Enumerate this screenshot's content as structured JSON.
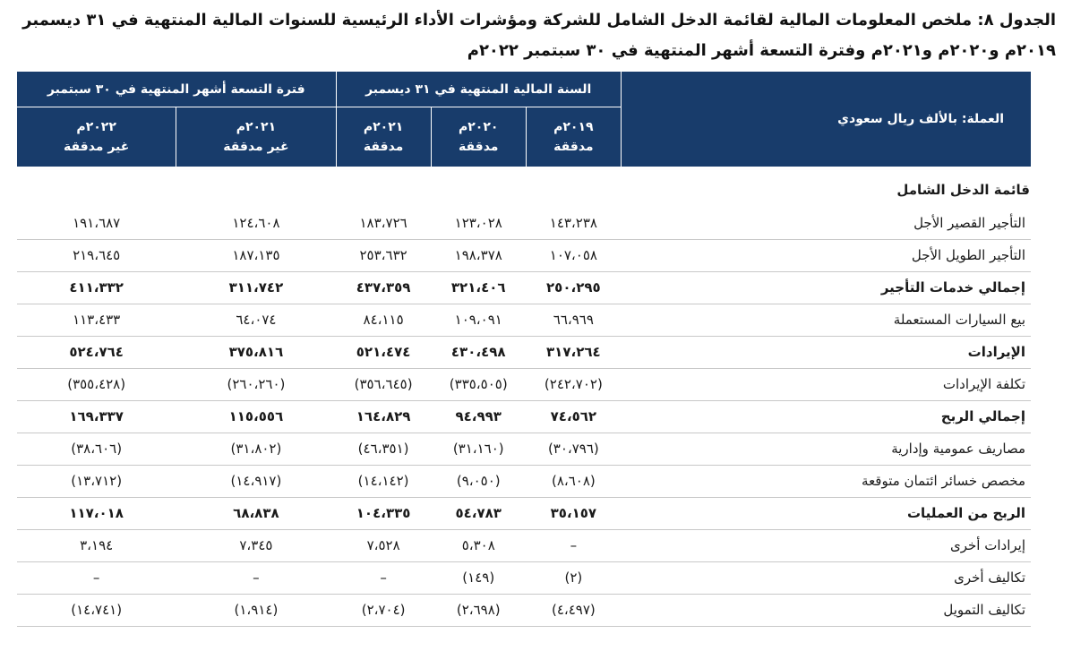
{
  "title": "الجدول ٨: ملخص المعلومات المالية لقائمة الدخل الشامل للشركة ومؤشرات الأداء الرئيسية للسنوات المالية المنتهية في ٣١ ديسمبر ٢٠١٩م و٢٠٢٠م و٢٠٢١م وفترة التسعة أشهر المنتهية في ٣٠ سبتمبر ٢٠٢٢م",
  "header": {
    "currency": "العملة: بالألف ريال سعودي",
    "group_fy": "السنة المالية المنتهية في ٣١ ديسمبر",
    "group_9m": "فترة التسعة أشهر المنتهية في ٣٠ سبتمبر",
    "columns": [
      {
        "year": "٢٠١٩م",
        "status": "مدققة"
      },
      {
        "year": "٢٠٢٠م",
        "status": "مدققة"
      },
      {
        "year": "٢٠٢١م",
        "status": "مدققة"
      },
      {
        "year": "٢٠٢١م",
        "status": "غير مدققة"
      },
      {
        "year": "٢٠٢٢م",
        "status": "غير مدققة"
      }
    ]
  },
  "section_title": "قائمة الدخل الشامل",
  "rows": [
    {
      "label": "التأجير القصير الأجل",
      "bold": false,
      "values": [
        "١٤٣،٢٣٨",
        "١٢٣،٠٢٨",
        "١٨٣،٧٢٦",
        "١٢٤،٦٠٨",
        "١٩١،٦٨٧"
      ]
    },
    {
      "label": "التأجير الطويل الأجل",
      "bold": false,
      "values": [
        "١٠٧،٠٥٨",
        "١٩٨،٣٧٨",
        "٢٥٣،٦٣٢",
        "١٨٧،١٣٥",
        "٢١٩،٦٤٥"
      ]
    },
    {
      "label": "إجمالي خدمات التأجير",
      "bold": true,
      "values": [
        "٢٥٠،٢٩٥",
        "٣٢١،٤٠٦",
        "٤٣٧،٣٥٩",
        "٣١١،٧٤٢",
        "٤١١،٣٣٢"
      ]
    },
    {
      "label": "بيع السيارات المستعملة",
      "bold": false,
      "values": [
        "٦٦،٩٦٩",
        "١٠٩،٠٩١",
        "٨٤،١١٥",
        "٦٤،٠٧٤",
        "١١٣،٤٣٣"
      ]
    },
    {
      "label": "الإيرادات",
      "bold": true,
      "values": [
        "٣١٧،٢٦٤",
        "٤٣٠،٤٩٨",
        "٥٢١،٤٧٤",
        "٣٧٥،٨١٦",
        "٥٢٤،٧٦٤"
      ]
    },
    {
      "label": "تكلفة الإيرادات",
      "bold": false,
      "values": [
        "(٢٤٢،٧٠٢)",
        "(٣٣٥،٥٠٥)",
        "(٣٥٦،٦٤٥)",
        "(٢٦٠،٢٦٠)",
        "(٣٥٥،٤٢٨)"
      ]
    },
    {
      "label": "إجمالي الربح",
      "bold": true,
      "values": [
        "٧٤،٥٦٢",
        "٩٤،٩٩٣",
        "١٦٤،٨٢٩",
        "١١٥،٥٥٦",
        "١٦٩،٣٣٧"
      ]
    },
    {
      "label": "مصاريف عمومية وإدارية",
      "bold": false,
      "values": [
        "(٣٠،٧٩٦)",
        "(٣١،١٦٠)",
        "(٤٦،٣٥١)",
        "(٣١،٨٠٢)",
        "(٣٨،٦٠٦)"
      ]
    },
    {
      "label": "مخصص خسائر ائتمان متوقعة",
      "bold": false,
      "values": [
        "(٨،٦٠٨)",
        "(٩،٠٥٠)",
        "(١٤،١٤٢)",
        "(١٤،٩١٧)",
        "(١٣،٧١٢)"
      ]
    },
    {
      "label": "الربح من العمليات",
      "bold": true,
      "values": [
        "٣٥،١٥٧",
        "٥٤،٧٨٣",
        "١٠٤،٣٣٥",
        "٦٨،٨٣٨",
        "١١٧،٠١٨"
      ]
    },
    {
      "label": "إيرادات أخرى",
      "bold": false,
      "values": [
        "–",
        "٥،٣٠٨",
        "٧،٥٢٨",
        "٧،٣٤٥",
        "٣،١٩٤"
      ]
    },
    {
      "label": "تكاليف أخرى",
      "bold": false,
      "values": [
        "(٢)",
        "(١٤٩)",
        "–",
        "–",
        "–"
      ]
    },
    {
      "label": "تكاليف التمويل",
      "bold": false,
      "values": [
        "(٤،٤٩٧)",
        "(٢،٦٩٨)",
        "(٢،٧٠٤)",
        "(١،٩١٤)",
        "(١٤،٧٤١)"
      ]
    }
  ]
}
